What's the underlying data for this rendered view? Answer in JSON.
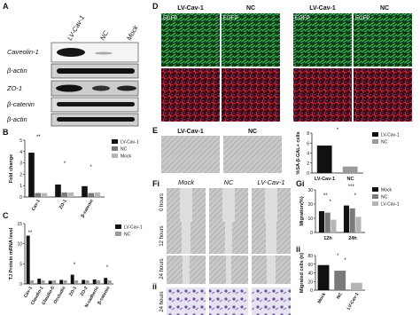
{
  "figure": {
    "panel_labels": [
      "A",
      "B",
      "C",
      "D",
      "E",
      "Fi",
      "ii",
      "Gi",
      "ii"
    ],
    "blot": {
      "lanes": [
        "LV-Cav-1",
        "NC",
        "Mock"
      ],
      "proteins": [
        "Caveolin-1",
        "β-actin",
        "ZO-1",
        "β-catenin",
        "β-actin"
      ]
    },
    "d": {
      "headers": [
        "LV-Cav-1",
        "NC",
        "LV-Cav-1",
        "NC"
      ],
      "channel": "EGFP"
    },
    "e": {
      "headers": [
        "LV-Cav-1",
        "NC"
      ]
    },
    "f": {
      "headers": [
        "Mock",
        "NC",
        "LV-Cav-1"
      ],
      "rows": [
        "0 hours",
        "12 hours",
        "24 hours",
        "24 hours"
      ]
    }
  },
  "chart_data": [
    {
      "type": "bar",
      "y_label": "Fold change",
      "categories": [
        "Cav-1",
        "ZO-1",
        "β-catenin"
      ],
      "series": [
        {
          "name": "LV-Cav-1",
          "color": "#111111",
          "values": [
            3.9,
            1.1,
            0.95
          ]
        },
        {
          "name": "NC",
          "color": "#7a7a7a",
          "values": [
            0.35,
            0.4,
            0.35
          ]
        },
        {
          "name": "Mock",
          "color": "#b5b5b5",
          "values": [
            0.35,
            0.4,
            0.4
          ]
        }
      ],
      "ylim": [
        0,
        5
      ],
      "yticks": [
        0,
        1,
        2,
        3,
        4,
        5
      ],
      "legend": "right",
      "significance": [
        "**",
        "*",
        "*"
      ]
    },
    {
      "type": "bar",
      "y_label": "TJ Protein mRNA level",
      "categories": [
        "Cav-1",
        "Claudin-1",
        "Claudin-5",
        "Occludin",
        "ZO-1",
        "ZO-2",
        "N-cadherin",
        "β-catenin"
      ],
      "series": [
        {
          "name": "LV-Cav-1",
          "color": "#111111",
          "values": [
            12,
            1.3,
            0.8,
            1,
            2.3,
            1,
            1.1,
            1.5
          ]
        },
        {
          "name": "NC",
          "color": "#9a9a9a",
          "values": [
            0.9,
            0.9,
            0.9,
            0.9,
            0.9,
            0.9,
            0.9,
            0.9
          ]
        }
      ],
      "ylim": [
        0,
        15
      ],
      "yticks": [
        0,
        5,
        10,
        15
      ],
      "legend": "right",
      "significance": [
        "**",
        "*",
        "*"
      ]
    },
    {
      "type": "bar",
      "y_label": "%SA-β-GAL+ cells",
      "categories": [
        "LV-Cav-1",
        "NC"
      ],
      "series": [
        {
          "name": "LV-Cav-1",
          "color": "#111111",
          "values": [
            5.5,
            null
          ]
        },
        {
          "name": "NC",
          "color": "#9a9a9a",
          "values": [
            null,
            1.3
          ]
        }
      ],
      "ylim": [
        0,
        8
      ],
      "yticks": [
        0,
        2,
        4,
        6,
        8
      ],
      "legend": "right",
      "significance": [
        "*"
      ]
    },
    {
      "type": "bar",
      "y_label": "Migration(%)",
      "categories": [
        "12h",
        "24h"
      ],
      "series": [
        {
          "name": "Mock",
          "color": "#111111",
          "values": [
            15,
            19
          ]
        },
        {
          "name": "NC",
          "color": "#7a7a7a",
          "values": [
            14,
            17
          ]
        },
        {
          "name": "LV-Cav-1",
          "color": "#b5b5b5",
          "values": [
            9,
            11
          ]
        }
      ],
      "ylim": [
        0,
        30
      ],
      "yticks": [
        0,
        10,
        20,
        30
      ],
      "legend": "right",
      "significance": [
        "**",
        "*",
        "***",
        "*"
      ]
    },
    {
      "type": "bar",
      "y_label": "Migrated cells (n)",
      "categories": [
        "Mock",
        "NC",
        "LV-Cav-1"
      ],
      "series": [
        {
          "name": "Migrated cells",
          "colors": [
            "#111111",
            "#7a7a7a",
            "#b5b5b5"
          ],
          "values": [
            58,
            45,
            17
          ]
        }
      ],
      "ylim": [
        0,
        80
      ],
      "yticks": [
        0,
        20,
        40,
        60,
        80
      ],
      "significance": [
        "*",
        "*"
      ]
    }
  ]
}
